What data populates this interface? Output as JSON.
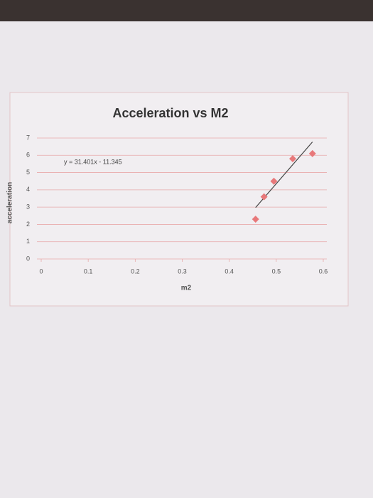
{
  "chart_data": {
    "type": "scatter",
    "title": "Acceleration vs M2",
    "x_label": "m2",
    "y_label": "acceleration",
    "x": [
      0.456,
      0.474,
      0.495,
      0.535,
      0.577
    ],
    "values": [
      2.3,
      3.6,
      4.5,
      5.8,
      6.1
    ],
    "color": "#e8787a",
    "trendline": {
      "slope": 31.401,
      "intercept": -11.345,
      "label": "y = 31.401x - 11.345",
      "color": "#444444"
    },
    "xlim": [
      0,
      0.6
    ],
    "xticks": [
      0,
      0.1,
      0.2,
      0.3,
      0.4,
      0.5,
      0.6
    ],
    "ylim": [
      0,
      7
    ],
    "yticks": [
      0,
      1,
      2,
      3,
      4,
      5,
      6,
      7
    ],
    "grid": true
  }
}
